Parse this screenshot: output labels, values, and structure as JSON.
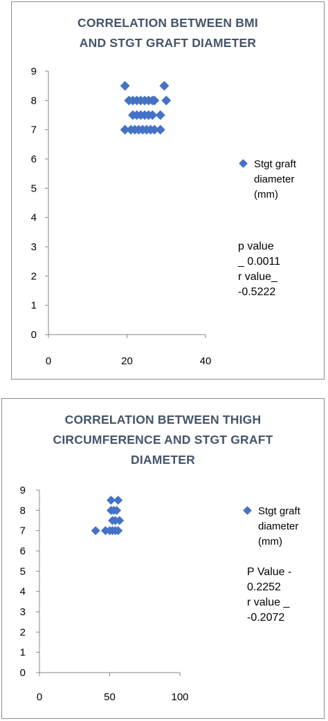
{
  "chart_data": [
    {
      "type": "scatter",
      "title": "CORRELATION BETWEEN BMI\nAND  STGT GRAFT DIAMETER",
      "xlabel": "",
      "ylabel": "",
      "xlim": [
        0,
        40
      ],
      "ylim": [
        0,
        9
      ],
      "x_ticks": [
        "0",
        "20",
        "40"
      ],
      "y_ticks": [
        "0",
        "1",
        "2",
        "3",
        "4",
        "5",
        "6",
        "7",
        "8",
        "9"
      ],
      "grid": false,
      "legend_position": "right",
      "series": [
        {
          "name": "Stgt graft diameter (mm)",
          "color": "#4472c4",
          "points": [
            {
              "x": 19.5,
              "y": 8.5
            },
            {
              "x": 29.5,
              "y": 8.5
            },
            {
              "x": 20.5,
              "y": 8
            },
            {
              "x": 21.5,
              "y": 8
            },
            {
              "x": 22.5,
              "y": 8
            },
            {
              "x": 23.5,
              "y": 8
            },
            {
              "x": 24.5,
              "y": 8
            },
            {
              "x": 25.5,
              "y": 8
            },
            {
              "x": 26.5,
              "y": 8
            },
            {
              "x": 27,
              "y": 8
            },
            {
              "x": 30,
              "y": 8
            },
            {
              "x": 21.5,
              "y": 7.5
            },
            {
              "x": 22.5,
              "y": 7.5
            },
            {
              "x": 23.5,
              "y": 7.5
            },
            {
              "x": 24.5,
              "y": 7.5
            },
            {
              "x": 25.5,
              "y": 7.5
            },
            {
              "x": 26.5,
              "y": 7.5
            },
            {
              "x": 28.5,
              "y": 7.5
            },
            {
              "x": 19.5,
              "y": 7
            },
            {
              "x": 21,
              "y": 7
            },
            {
              "x": 22,
              "y": 7
            },
            {
              "x": 23,
              "y": 7
            },
            {
              "x": 24,
              "y": 7
            },
            {
              "x": 25,
              "y": 7
            },
            {
              "x": 26,
              "y": 7
            },
            {
              "x": 27,
              "y": 7
            },
            {
              "x": 28.5,
              "y": 7
            }
          ]
        }
      ],
      "legend": [
        "Stgt graft",
        "diameter",
        "(mm)"
      ],
      "annotations": [
        "p value",
        "_ 0.0011",
        "r value_",
        "-0.5222"
      ]
    },
    {
      "type": "scatter",
      "title": "CORRELATION BETWEEN THIGH\nCIRCUMFERENCE AND STGT GRAFT\nDIAMETER",
      "xlabel": "",
      "ylabel": "",
      "xlim": [
        0,
        100
      ],
      "ylim": [
        0,
        9
      ],
      "x_ticks": [
        "0",
        "50",
        "100"
      ],
      "y_ticks": [
        "0",
        "1",
        "2",
        "3",
        "4",
        "5",
        "6",
        "7",
        "8",
        "9"
      ],
      "grid": false,
      "legend_position": "right",
      "series": [
        {
          "name": "Stgt graft diameter (mm)",
          "color": "#4472c4",
          "points": [
            {
              "x": 51,
              "y": 8.5
            },
            {
              "x": 56,
              "y": 8.5
            },
            {
              "x": 51,
              "y": 8
            },
            {
              "x": 53,
              "y": 8
            },
            {
              "x": 55,
              "y": 8
            },
            {
              "x": 52,
              "y": 7.5
            },
            {
              "x": 54,
              "y": 7.5
            },
            {
              "x": 57,
              "y": 7.5
            },
            {
              "x": 40,
              "y": 7
            },
            {
              "x": 47,
              "y": 7
            },
            {
              "x": 50,
              "y": 7
            },
            {
              "x": 52,
              "y": 7
            },
            {
              "x": 54,
              "y": 7
            },
            {
              "x": 56,
              "y": 7
            }
          ]
        }
      ],
      "legend": [
        "Stgt graft",
        "diameter",
        "(mm)"
      ],
      "annotations": [
        "P Value -",
        "0.2252",
        "r value _",
        "-0.2072"
      ]
    }
  ]
}
